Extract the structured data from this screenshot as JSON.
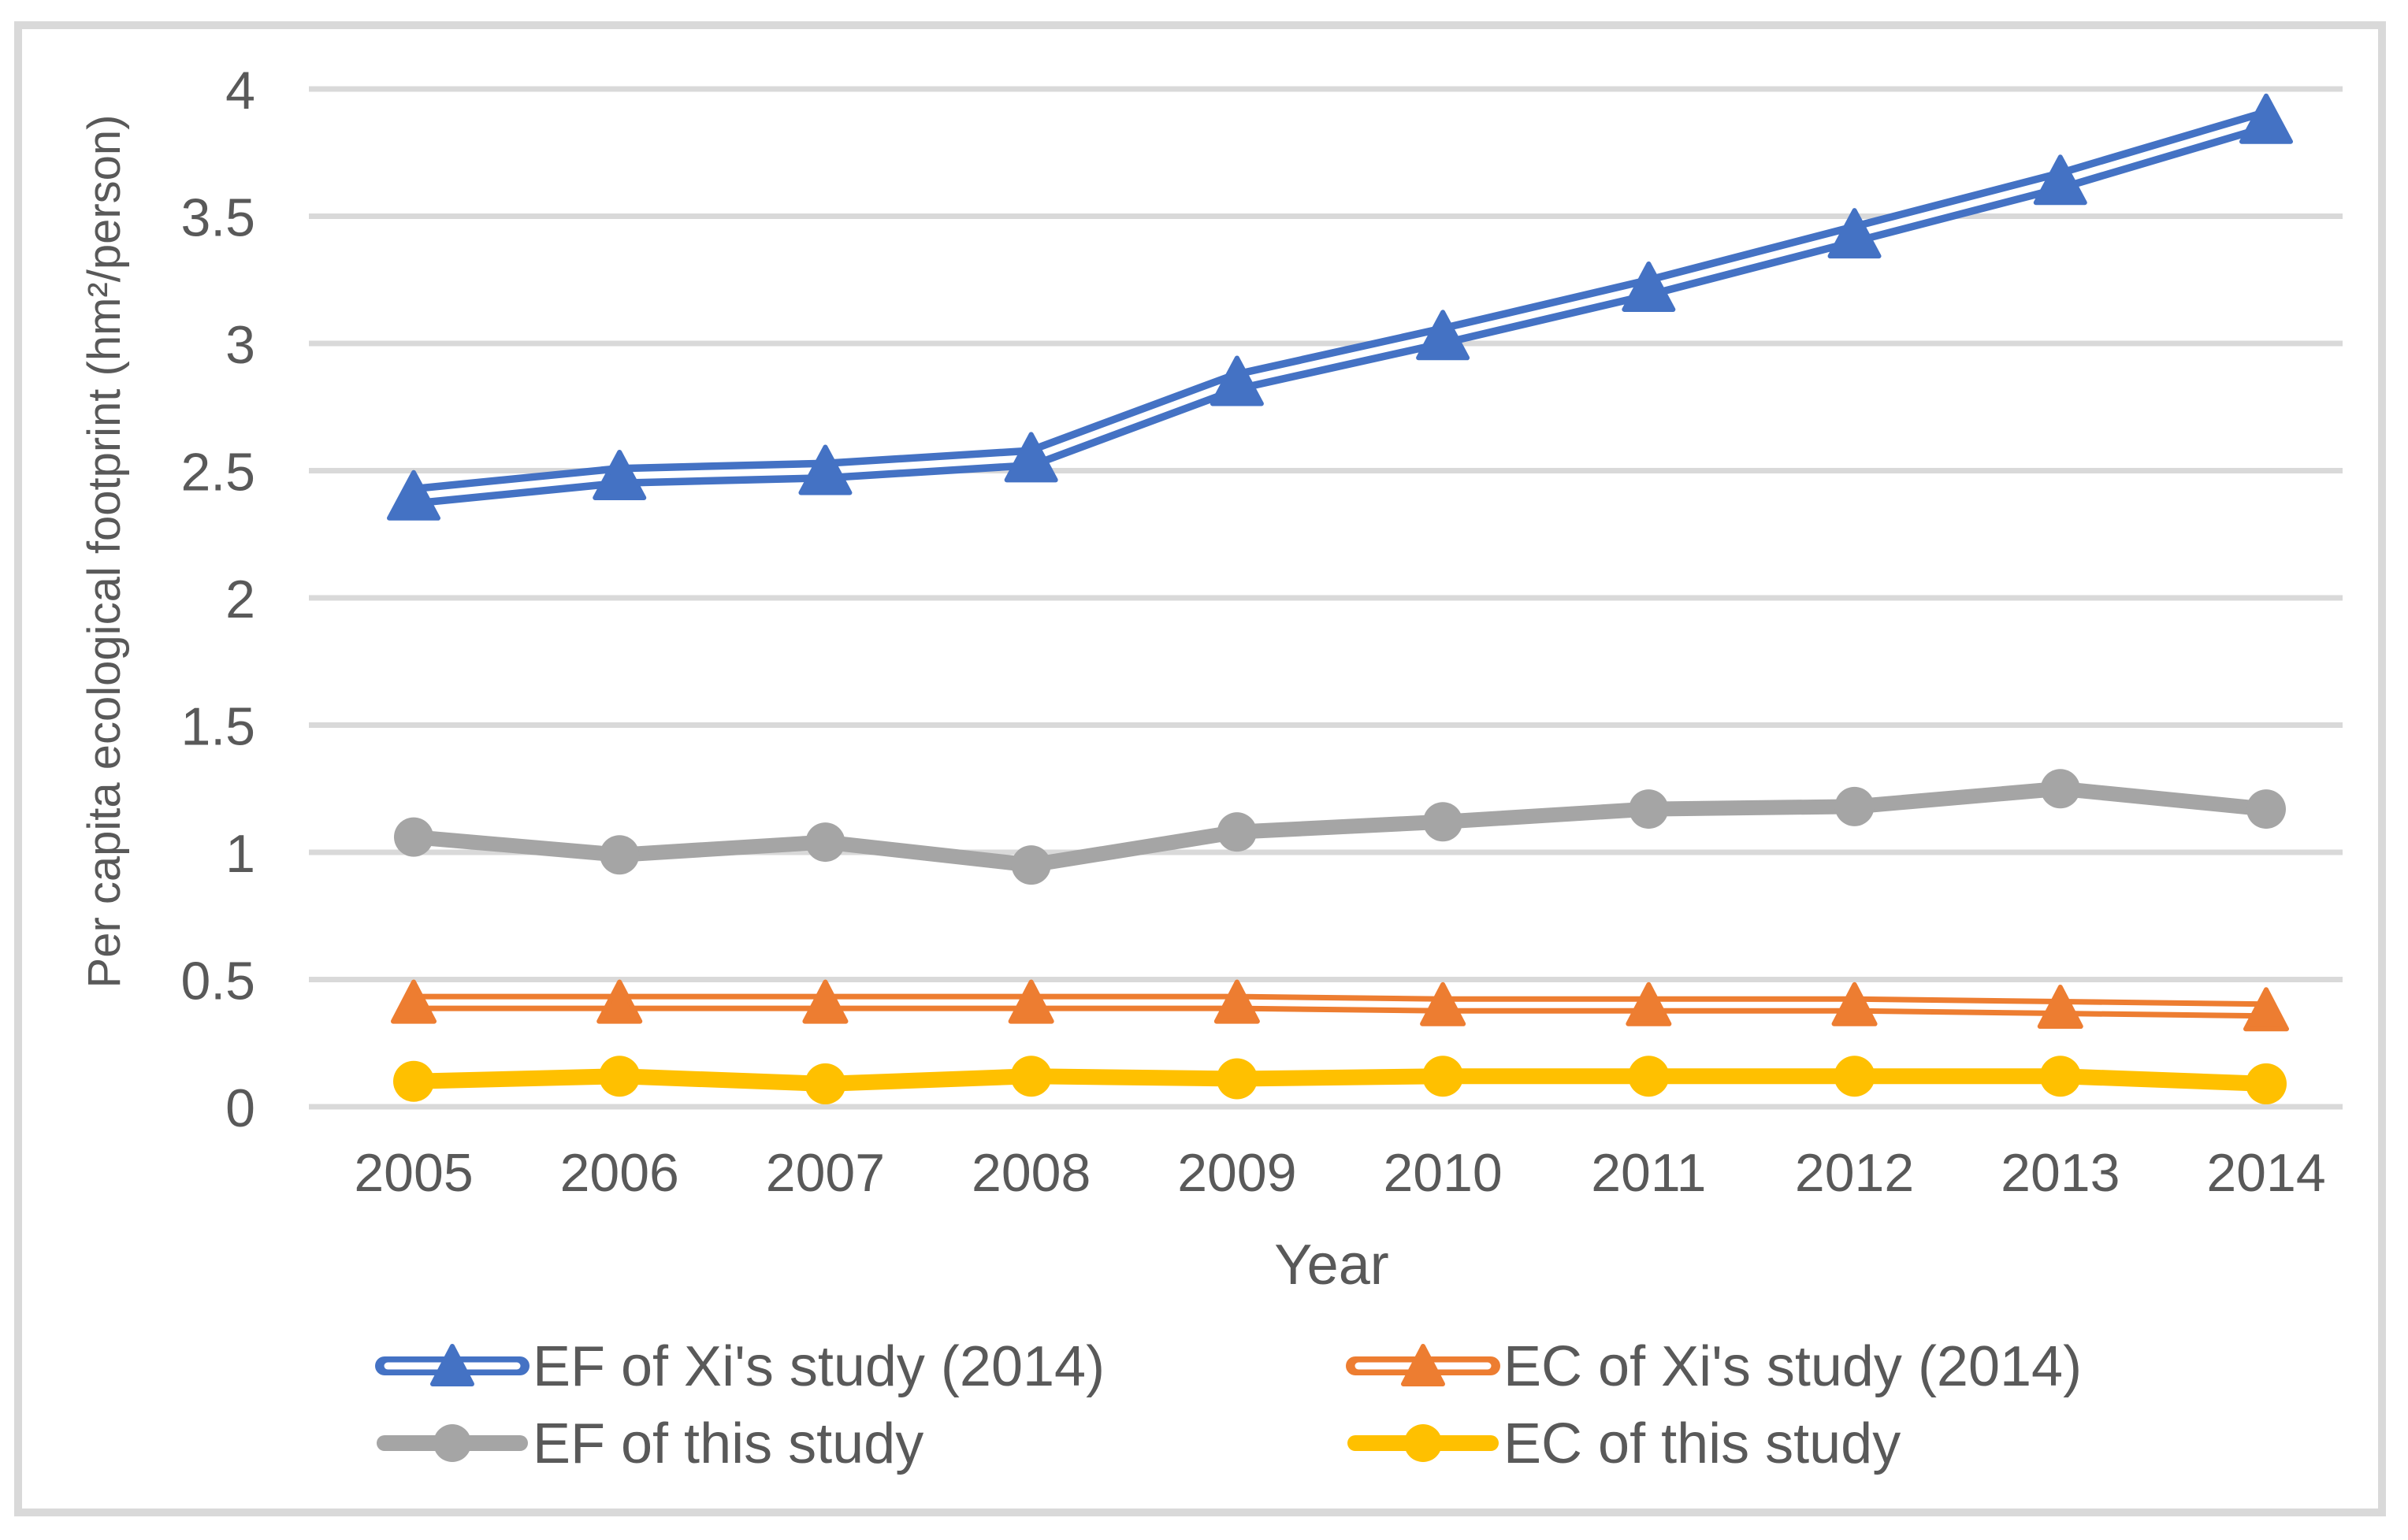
{
  "figure": {
    "kind": "excel-style line chart",
    "background": "#ffffff",
    "frame_color": "#d9d9d9",
    "gridline_color": "#d9d9d9",
    "text_color": "#595959",
    "y_axis": {
      "title": "Per capita ecological footprint (hm²/person)",
      "min": 0,
      "max": 4,
      "step": 0.5,
      "ticks": [
        "0",
        "0.5",
        "1",
        "1.5",
        "2",
        "2.5",
        "3",
        "3.5",
        "4"
      ]
    },
    "x_axis": {
      "title": "Year",
      "categories": [
        "2005",
        "2006",
        "2007",
        "2008",
        "2009",
        "2010",
        "2011",
        "2012",
        "2013",
        "2014"
      ]
    },
    "legend": [
      {
        "label": "EF of Xi's study (2014)",
        "series": "EF of Xi's study (2014)"
      },
      {
        "label": "EC of Xi's study (2014)",
        "series": "EC of Xi's study (2014)"
      },
      {
        "label": "EF of this study",
        "series": "EF of this study"
      },
      {
        "label": "EC of this study",
        "series": "EC of this study"
      }
    ]
  },
  "chart_data": {
    "type": "line",
    "title": "",
    "xlabel": "Year",
    "ylabel": "Per capita ecological footprint (hm²/person)",
    "x": [
      2005,
      2006,
      2007,
      2008,
      2009,
      2010,
      2011,
      2012,
      2013,
      2014
    ],
    "ylim": [
      0,
      4
    ],
    "grid": "horizontal",
    "legend_position": "bottom",
    "series": [
      {
        "name": "EF of Xi's study (2014)",
        "color": "#4472C4",
        "marker": "triangle",
        "line_style": "double",
        "values": [
          2.4,
          2.48,
          2.5,
          2.55,
          2.85,
          3.03,
          3.22,
          3.43,
          3.64,
          3.88
        ]
      },
      {
        "name": "EC of Xi's study (2014)",
        "color": "#ED7D31",
        "marker": "triangle",
        "line_style": "double",
        "values": [
          0.41,
          0.41,
          0.41,
          0.41,
          0.41,
          0.4,
          0.4,
          0.4,
          0.39,
          0.38
        ]
      },
      {
        "name": "EF of this study",
        "color": "#A5A5A5",
        "marker": "circle",
        "line_style": "solid",
        "values": [
          1.06,
          0.99,
          1.04,
          0.95,
          1.08,
          1.12,
          1.17,
          1.18,
          1.25,
          1.17
        ]
      },
      {
        "name": "EC of this study",
        "color": "#FFC000",
        "marker": "circle",
        "line_style": "solid",
        "values": [
          0.1,
          0.12,
          0.09,
          0.12,
          0.11,
          0.12,
          0.12,
          0.12,
          0.12,
          0.09
        ]
      }
    ]
  }
}
